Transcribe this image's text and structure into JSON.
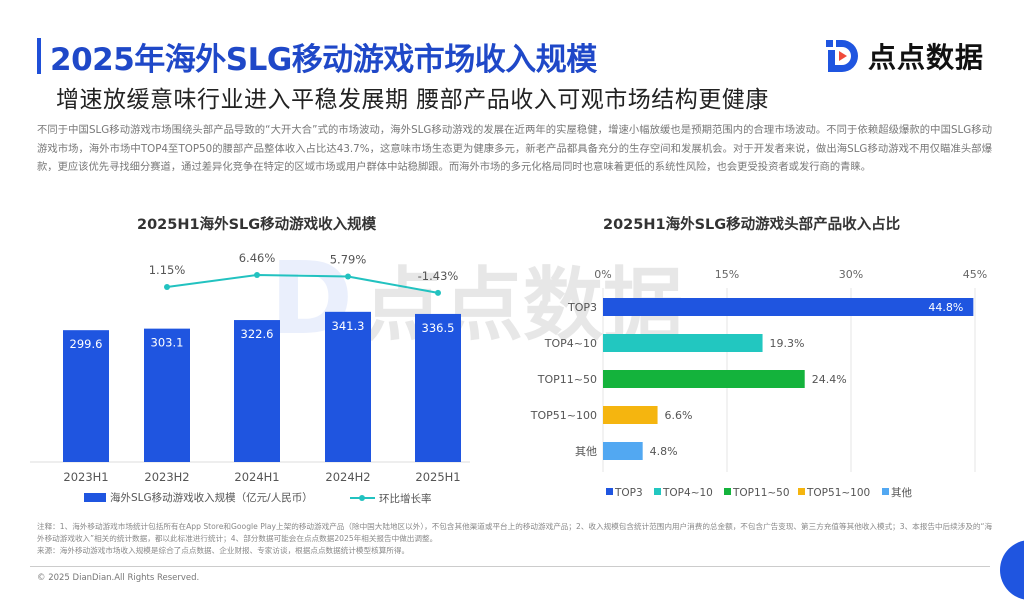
{
  "header": {
    "title": "2025年海外SLG移动游戏市场收入规模",
    "subtitle": "增速放缓意味行业进入平稳发展期 腰部产品收入可观市场结构更健康",
    "logo_text": "点点数据",
    "accent_color": "#1f4fd8"
  },
  "paragraph": "不同于中国SLG移动游戏市场围绕头部产品导致的“大开大合”式的市场波动，海外SLG移动游戏的发展在近两年的实屋稳健，增速小幅放缓也是预期范围内的合理市场波动。不同于依赖超级爆款的中国SLG移动游戏市场，海外市场中TOP4至TOP50的腰部产品整体收入占比达43.7%，这意味市场生态更为健康多元，新老产品都具备充分的生存空间和发展机会。对于开发者来说，做出海SLG移动游戏不用仅瞄准头部爆款，更应该优先寻找细分赛道，通过差异化竞争在特定的区域市场或用户群体中站稳脚跟。而海外市场的多元化格局同时也意味着更低的系统性风险，也会更受投资者或发行商的青睐。",
  "watermark": "点点数据",
  "chart_data": [
    {
      "type": "bar+line",
      "title": "2025H1海外SLG移动游戏收入规模",
      "categories": [
        "2023H1",
        "2023H2",
        "2024H1",
        "2024H2",
        "2025H1"
      ],
      "series": [
        {
          "name": "海外SLG移动游戏收入规模（亿元/人民币）",
          "type": "bar",
          "color": "#1f55e0",
          "values": [
            299.6,
            303.1,
            322.6,
            341.3,
            336.5
          ],
          "labels": [
            "299.6",
            "303.1",
            "322.6",
            "341.3",
            "336.5"
          ]
        },
        {
          "name": "环比增长率",
          "type": "line",
          "color": "#22c2c0",
          "values": [
            null,
            1.15,
            6.46,
            5.79,
            -1.43
          ],
          "labels": [
            "",
            "1.15%",
            "6.46%",
            "5.79%",
            "-1.43%"
          ]
        }
      ],
      "legend": "bottom"
    },
    {
      "type": "horizontal-bar",
      "title": "2025H1海外SLG移动游戏头部产品收入占比",
      "categories": [
        "TOP3",
        "TOP4~10",
        "TOP11~50",
        "TOP51~100",
        "其他"
      ],
      "values": [
        44.8,
        19.3,
        24.4,
        6.6,
        4.8
      ],
      "labels": [
        "44.8%",
        "19.3%",
        "24.4%",
        "6.6%",
        "4.8%"
      ],
      "colors": [
        "#1f55e0",
        "#22c7c0",
        "#14b33c",
        "#f5b50f",
        "#52a8f2"
      ],
      "xlim": [
        0,
        45
      ],
      "xticks": [
        "0%",
        "15%",
        "30%",
        "45%"
      ],
      "grid": true,
      "legend": "bottom"
    }
  ],
  "notes": {
    "line1": "注释：1、海外移动游戏市场统计包括所有在App Store和Google Play上架的移动游戏产品（除中国大陆地区以外），不包含其他渠道或平台上的移动游戏产品；2、收入规模包含统计范围内用户消费的总金额，不包含广告变现、第三方充值等其他收入模式；3、本报告中后续涉及的“海外移动游戏收入”相关的统计数据，都以此标准进行统计；4、部分数据可能会在点点数据2025年相关报告中做出调整。",
    "line2": "来源：海外移动游戏市场收入规模是综合了点点数据、企业财报、专家访谈，根据点点数据统计模型核算所得。"
  },
  "copyright": "© 2025 DianDian.All Rights Reserved."
}
